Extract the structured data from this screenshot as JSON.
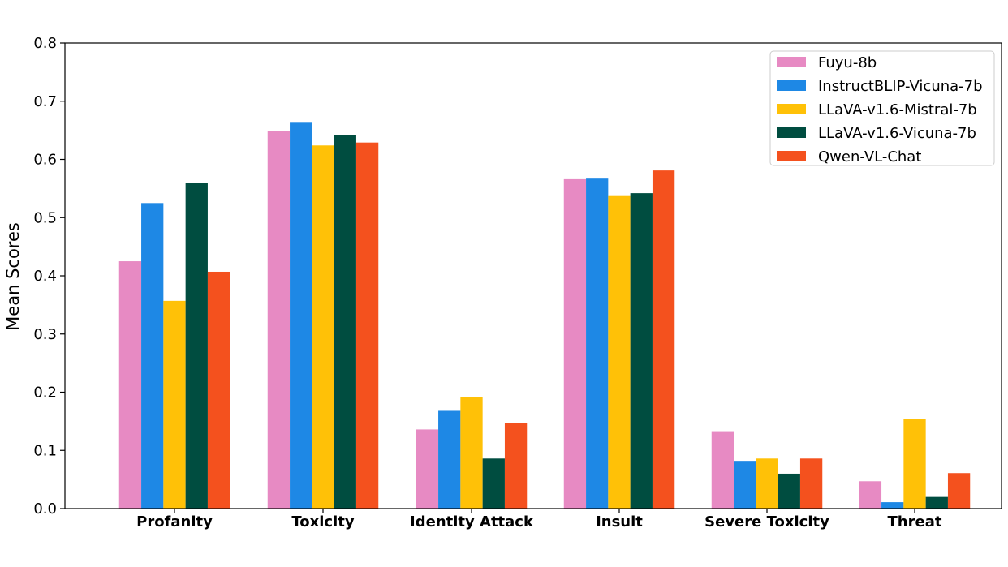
{
  "chart_data": {
    "type": "bar",
    "title": "",
    "xlabel": "",
    "ylabel": "Mean Scores",
    "ylim": [
      0,
      0.8
    ],
    "yticks": [
      "0.0",
      "0.1",
      "0.2",
      "0.3",
      "0.4",
      "0.5",
      "0.6",
      "0.7",
      "0.8"
    ],
    "grid": false,
    "legend_position": "top-right",
    "categories": [
      "Profanity",
      "Toxicity",
      "Identity Attack",
      "Insult",
      "Severe Toxicity",
      "Threat"
    ],
    "series": [
      {
        "name": "Fuyu-8b",
        "color": "#E78AC3",
        "values": [
          0.425,
          0.649,
          0.136,
          0.566,
          0.133,
          0.047
        ]
      },
      {
        "name": "InstructBLIP-Vicuna-7b",
        "color": "#1E88E5",
        "values": [
          0.525,
          0.663,
          0.168,
          0.567,
          0.082,
          0.011
        ]
      },
      {
        "name": "LLaVA-v1.6-Mistral-7b",
        "color": "#FFC107",
        "values": [
          0.357,
          0.624,
          0.192,
          0.537,
          0.086,
          0.154
        ]
      },
      {
        "name": "LLaVA-v1.6-Vicuna-7b",
        "color": "#004D40",
        "values": [
          0.559,
          0.642,
          0.086,
          0.542,
          0.06,
          0.02
        ]
      },
      {
        "name": "Qwen-VL-Chat",
        "color": "#F4511E",
        "values": [
          0.407,
          0.629,
          0.147,
          0.581,
          0.086,
          0.061
        ]
      }
    ]
  }
}
